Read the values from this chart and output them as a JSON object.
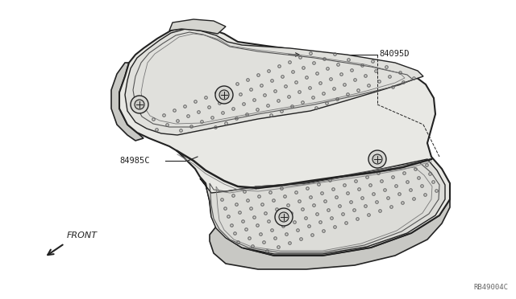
{
  "bg_color": "#ffffff",
  "line_color": "#222222",
  "fill_main": "#e8e8e4",
  "fill_side": "#c8c8c4",
  "fill_top": "#d8d8d4",
  "part_label_1": "84095D",
  "part_label_2": "84985C",
  "diagram_code": "RB49004C",
  "front_label": "FRONT"
}
